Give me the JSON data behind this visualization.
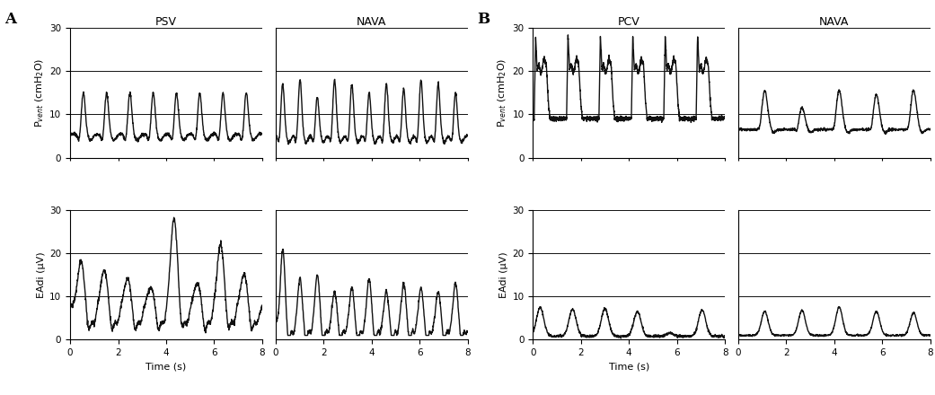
{
  "panel_A_label": "A",
  "panel_B_label": "B",
  "col_titles_A": [
    "PSV",
    "NAVA"
  ],
  "col_titles_B": [
    "PCV",
    "NAVA"
  ],
  "ylabel_pvent": "P$_{vent}$ (cmH$_2$O)",
  "ylabel_eadi": "EAdi (μV)",
  "xlabel": "Time (s)",
  "xlim": [
    0,
    8
  ],
  "xticks": [
    0,
    2,
    4,
    6,
    8
  ],
  "ylim": [
    0,
    30
  ],
  "yticks": [
    0,
    10,
    20,
    30
  ],
  "hlines": [
    10,
    20,
    30
  ],
  "line_color": "#111111",
  "hline_color": "#111111",
  "bg_color": "#ffffff",
  "linewidth": 1.0,
  "hlinewidth": 0.7,
  "font_size_label": 8,
  "font_size_title": 9,
  "font_size_panel": 12,
  "font_size_axis": 7.5
}
